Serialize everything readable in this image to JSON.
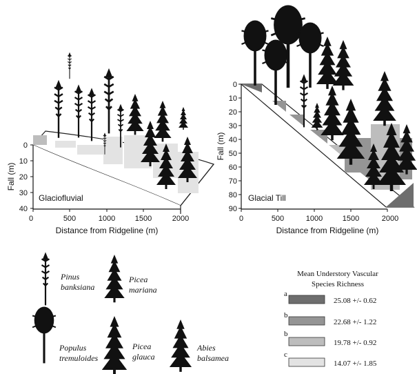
{
  "left_panel": {
    "label": "Glaciofluvial",
    "x_title": "Distance from Ridgeline (m)",
    "y_title": "Fall (m)",
    "x_ticks": [
      "0",
      "500",
      "1000",
      "1500",
      "2000"
    ],
    "y_ticks": [
      "0",
      "10",
      "20",
      "30",
      "40"
    ]
  },
  "right_panel": {
    "label": "Glacial Till",
    "x_title": "Distance from Ridgeline (m)",
    "y_title": "Fall (m)",
    "x_ticks": [
      "0",
      "500",
      "1000",
      "1500",
      "2000"
    ],
    "y_ticks": [
      "0",
      "10",
      "20",
      "30",
      "40",
      "50",
      "60",
      "70",
      "80",
      "90"
    ]
  },
  "species": [
    {
      "line1": "Pinus",
      "line2": "banksiana",
      "icon": "pinus-icon"
    },
    {
      "line1": "Picea",
      "line2": "mariana",
      "icon": "picea-mariana-icon"
    },
    {
      "line1": "Populus",
      "line2": "tremuloides",
      "icon": "populus-icon"
    },
    {
      "line1": "Picea",
      "line2": "glauca",
      "icon": "picea-glauca-icon"
    },
    {
      "line1": "Abies",
      "line2": "balsamea",
      "icon": "abies-icon"
    }
  ],
  "richness_legend": {
    "title_line1": "Mean Understory Vascular",
    "title_line2": "Species Richness",
    "items": [
      {
        "group": "a",
        "value": "25.08 +/- 0.62",
        "color": "#6e6e6e"
      },
      {
        "group": "b",
        "value": "22.68 +/- 1.22",
        "color": "#959595"
      },
      {
        "group": "b",
        "value": "19.78 +/- 0.92",
        "color": "#bdbdbd"
      },
      {
        "group": "c",
        "value": "14.07 +/- 1.85",
        "color": "#e3e3e3"
      }
    ]
  }
}
